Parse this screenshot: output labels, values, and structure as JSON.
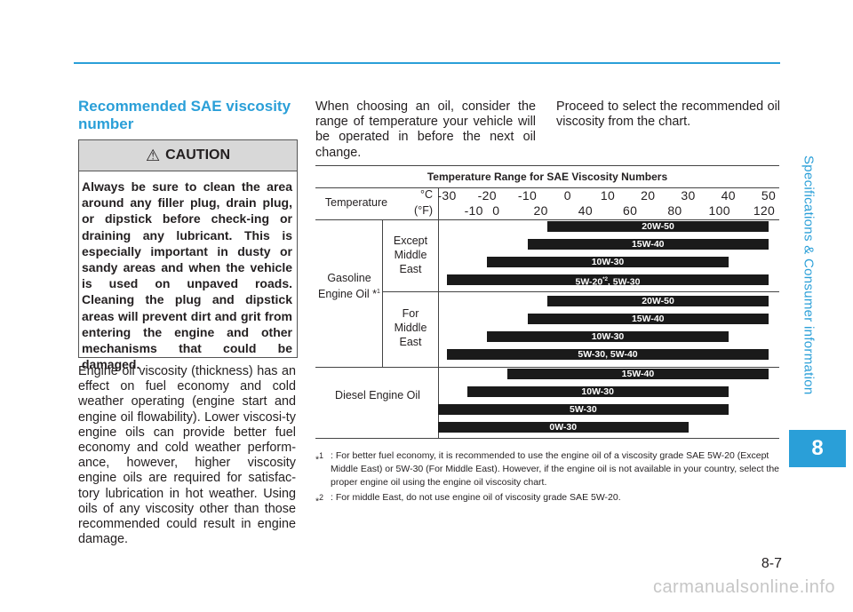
{
  "side_title": "Specifications & Consumer information",
  "chapter": "8",
  "page_number": "8-7",
  "watermark": "carmanualsonline.info",
  "heading": "Recommended SAE viscosity number",
  "caution": {
    "title": "CAUTION",
    "icon": "warning-triangle-icon",
    "body": "Always be sure to clean the area around any filler plug, drain plug, or dipstick before check-ing or draining any lubricant. This is especially important in dusty or sandy areas and when the vehicle is used on unpaved roads. Cleaning the plug and dipstick areas will prevent dirt and grit from entering the engine and other mechanisms that could be damaged."
  },
  "para1": "Engine oil viscosity (thickness) has an effect on fuel economy and cold weather operating (engine start and engine oil flowability). Lower viscosi-ty engine oils can provide better fuel economy and cold weather perform-ance, however, higher viscosity engine oils are required for satisfac-tory lubrication in hot weather. Using oils of any viscosity other than those recommended could result in engine damage.",
  "para2": "When choosing an oil, consider the range of temperature your vehicle will be operated in before the next oil change.",
  "para3": "Proceed to select the recommended oil viscosity from the chart.",
  "chart": {
    "title": "Temperature Range for SAE Viscosity Numbers",
    "temp_label": "Temperature",
    "unit_c": "°C",
    "unit_f": "(°F)",
    "c_ticks": [
      "-30",
      "-20",
      "-10",
      "0",
      "10",
      "20",
      "30",
      "40",
      "50"
    ],
    "f_ticks": [
      "-10",
      "0",
      "20",
      "40",
      "60",
      "80",
      "100",
      "120"
    ],
    "gasoline_label": "Gasoline Engine Oil *",
    "gasoline_sup": "1",
    "except_label": "Except Middle East",
    "for_label": "For Middle East",
    "diesel_label": "Diesel Engine Oil"
  },
  "chart_data": {
    "type": "range-bar",
    "title": "Temperature Range for SAE Viscosity Numbers",
    "unit": "°C",
    "axis_c_range": [
      -30,
      50
    ],
    "groups": [
      {
        "name": "Gasoline Engine Oil - Except Middle East",
        "bars": [
          {
            "label": "20W-50",
            "from": -5,
            "to": 50
          },
          {
            "label": "15W-40",
            "from": -10,
            "to": 50
          },
          {
            "label": "10W-30",
            "from": -20,
            "to": 40
          },
          {
            "label": "5W-20*2, 5W-30",
            "from": -30,
            "to": 50
          }
        ]
      },
      {
        "name": "Gasoline Engine Oil - For Middle East",
        "bars": [
          {
            "label": "20W-50",
            "from": -5,
            "to": 50
          },
          {
            "label": "15W-40",
            "from": -10,
            "to": 50
          },
          {
            "label": "10W-30",
            "from": -20,
            "to": 40
          },
          {
            "label": "5W-30, 5W-40",
            "from": -30,
            "to": 50
          }
        ]
      },
      {
        "name": "Diesel Engine Oil",
        "bars": [
          {
            "label": "15W-40",
            "from": -15,
            "to": 50
          },
          {
            "label": "10W-30",
            "from": -25,
            "to": 40
          },
          {
            "label": "5W-30",
            "from": -35,
            "to": 40
          },
          {
            "label": "0W-30",
            "from": -40,
            "to": 30
          }
        ]
      }
    ]
  },
  "footnotes": [
    {
      "mark": "*1",
      "text": ": For better fuel economy, it is recommended to use the engine oil of a viscosity grade SAE 5W-20 (Except Middle East) or 5W-30 (For Middle East). However, if the engine oil is not available in your country, select the proper engine oil using the engine oil viscosity chart."
    },
    {
      "mark": "*2",
      "text": ": For middle East, do not use engine oil of viscosity grade SAE 5W-20."
    }
  ]
}
